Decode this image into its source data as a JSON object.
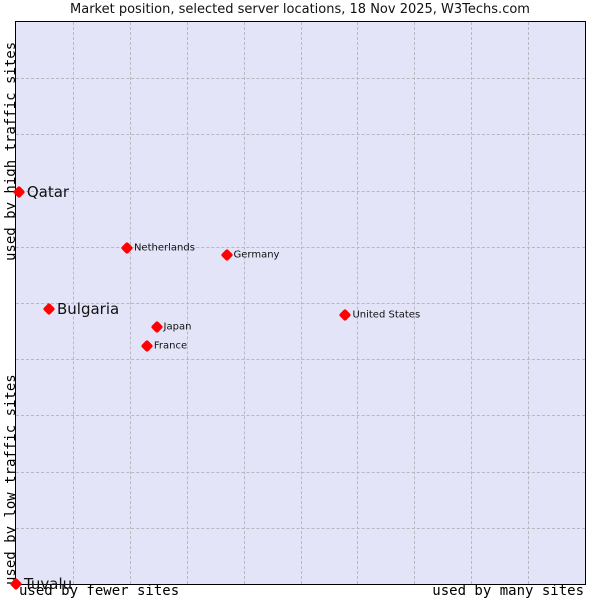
{
  "chart_data": {
    "type": "scatter",
    "title": "Market position, selected server locations, 18 Nov 2025, W3Techs.com",
    "xlabel_left": "used by fewer sites",
    "xlabel_right": "used by many sites",
    "ylabel_top": "used by high traffic sites",
    "ylabel_bottom": "used by low traffic sites",
    "xlim": [
      0,
      100
    ],
    "ylim": [
      0,
      100
    ],
    "grid": true,
    "grid_divisions": 10,
    "point_color": "#ff0000",
    "background_color": "#e4e4f8",
    "points": [
      {
        "label": "Qatar",
        "x": 0.5,
        "y": 69.8,
        "size": "big"
      },
      {
        "label": "Netherlands",
        "x": 19.5,
        "y": 59.7,
        "size": "small"
      },
      {
        "label": "Germany",
        "x": 37.0,
        "y": 58.6,
        "size": "small"
      },
      {
        "label": "Bulgaria",
        "x": 5.8,
        "y": 49.0,
        "size": "big"
      },
      {
        "label": "United States",
        "x": 57.9,
        "y": 47.8,
        "size": "small"
      },
      {
        "label": "Japan",
        "x": 24.7,
        "y": 45.8,
        "size": "small"
      },
      {
        "label": "France",
        "x": 23.0,
        "y": 42.3,
        "size": "small"
      },
      {
        "label": "Tuvalu",
        "x": 0.0,
        "y": 0.0,
        "size": "big"
      }
    ]
  }
}
